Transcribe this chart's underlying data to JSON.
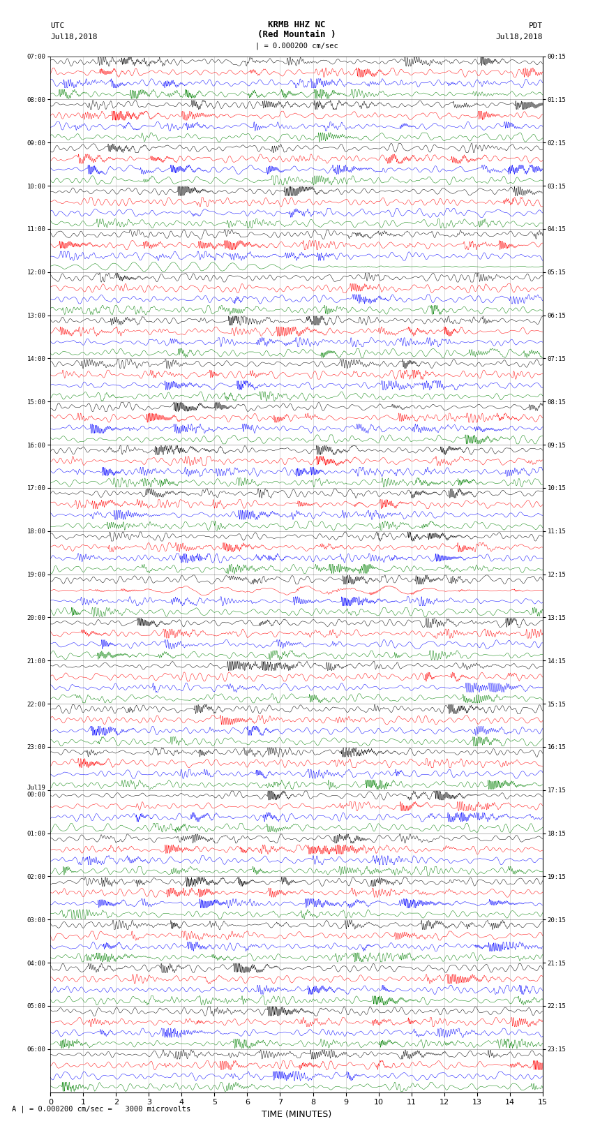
{
  "title1": "KRMB HHZ NC",
  "title2": "(Red Mountain )",
  "scale_text": "| = 0.000200 cm/sec",
  "left_header1": "UTC",
  "left_header2": "Jul18,2018",
  "right_header1": "PDT",
  "right_header2": "Jul18,2018",
  "bottom_label": "A | = 0.000200 cm/sec =   3000 microvolts",
  "xlabel": "TIME (MINUTES)",
  "xlim": [
    0,
    15
  ],
  "xticks": [
    0,
    1,
    2,
    3,
    4,
    5,
    6,
    7,
    8,
    9,
    10,
    11,
    12,
    13,
    14,
    15
  ],
  "left_times": [
    "07:00",
    "08:00",
    "09:00",
    "10:00",
    "11:00",
    "12:00",
    "13:00",
    "14:00",
    "15:00",
    "16:00",
    "17:00",
    "18:00",
    "19:00",
    "20:00",
    "21:00",
    "22:00",
    "23:00",
    "Jul19\n00:00",
    "01:00",
    "02:00",
    "03:00",
    "04:00",
    "05:00",
    "06:00"
  ],
  "right_times": [
    "00:15",
    "01:15",
    "02:15",
    "03:15",
    "04:15",
    "05:15",
    "06:15",
    "07:15",
    "08:15",
    "09:15",
    "10:15",
    "11:15",
    "12:15",
    "13:15",
    "14:15",
    "15:15",
    "16:15",
    "17:15",
    "18:15",
    "19:15",
    "20:15",
    "21:15",
    "22:15",
    "23:15"
  ],
  "colors": [
    "black",
    "red",
    "blue",
    "green"
  ],
  "n_hours": 24,
  "traces_per_hour": 4,
  "n_rows": 96,
  "bg_color": "white",
  "figsize": [
    8.5,
    16.13
  ],
  "dpi": 100,
  "special_green_hour": 4,
  "special_blue_hour": 12
}
